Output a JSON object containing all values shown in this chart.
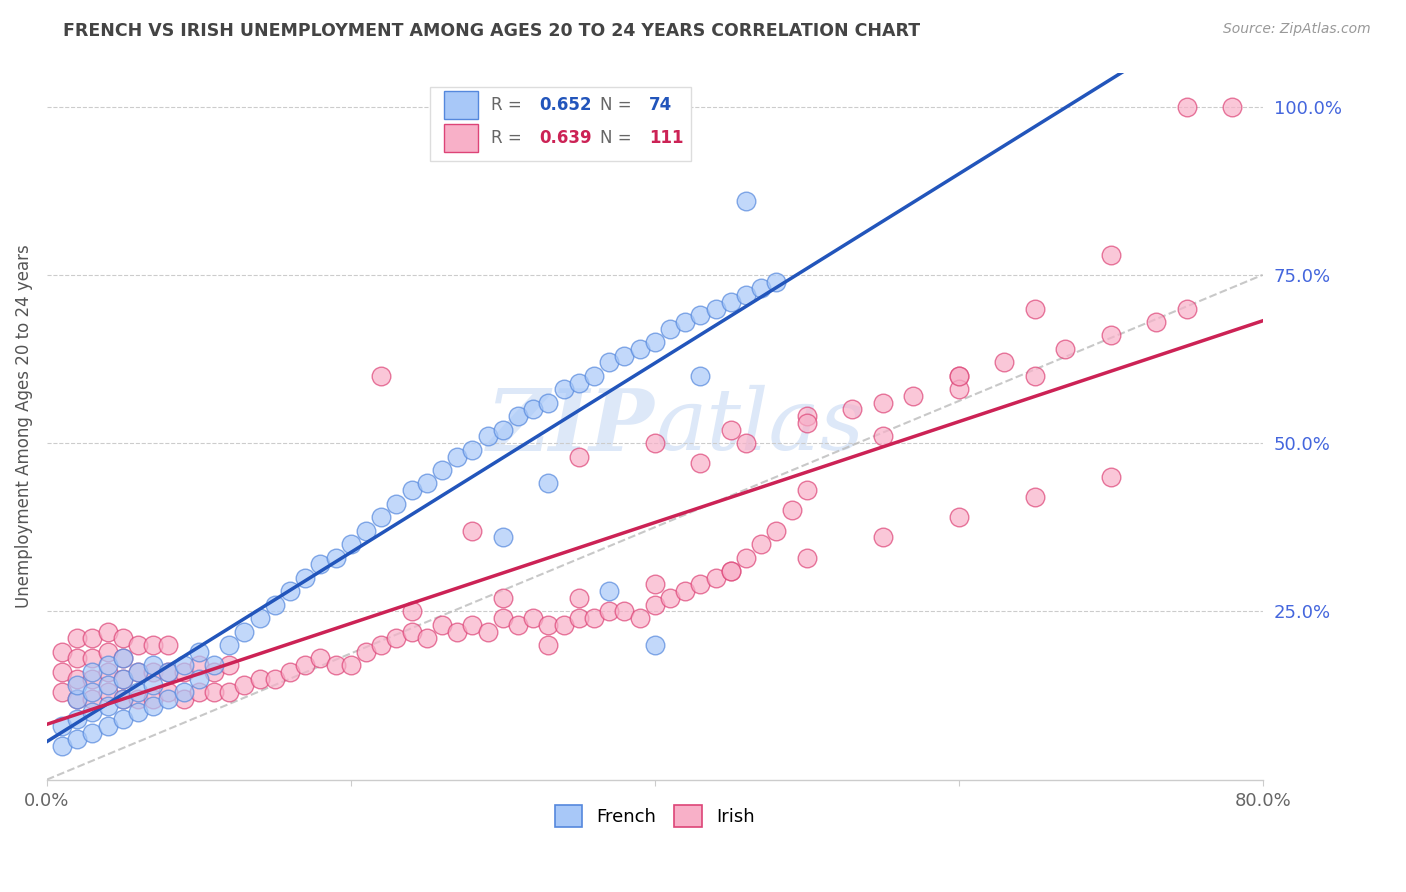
{
  "title": "FRENCH VS IRISH UNEMPLOYMENT AMONG AGES 20 TO 24 YEARS CORRELATION CHART",
  "source": "Source: ZipAtlas.com",
  "ylabel": "Unemployment Among Ages 20 to 24 years",
  "xlim": [
    0.0,
    0.8
  ],
  "ylim": [
    0.0,
    1.05
  ],
  "yticks_right_labels": [
    "25.0%",
    "50.0%",
    "75.0%",
    "100.0%"
  ],
  "ytick_right_color": "#4466dd",
  "french_color": "#a8c8f8",
  "irish_color": "#f8b0c8",
  "french_edge_color": "#5588dd",
  "irish_edge_color": "#dd4477",
  "trendline_french_color": "#2255bb",
  "trendline_irish_color": "#cc2255",
  "ref_line_color": "#bbbbbb",
  "grid_color": "#cccccc",
  "title_color": "#444444",
  "watermark_color": "#dde8f8",
  "french_r": "0.652",
  "french_n": "74",
  "irish_r": "0.639",
  "irish_n": "111",
  "french_x": [
    0.01,
    0.01,
    0.02,
    0.02,
    0.02,
    0.02,
    0.03,
    0.03,
    0.03,
    0.03,
    0.04,
    0.04,
    0.04,
    0.04,
    0.05,
    0.05,
    0.05,
    0.05,
    0.06,
    0.06,
    0.06,
    0.07,
    0.07,
    0.07,
    0.08,
    0.08,
    0.09,
    0.09,
    0.1,
    0.1,
    0.11,
    0.12,
    0.13,
    0.14,
    0.15,
    0.16,
    0.17,
    0.18,
    0.19,
    0.2,
    0.21,
    0.22,
    0.23,
    0.24,
    0.25,
    0.26,
    0.27,
    0.28,
    0.29,
    0.3,
    0.31,
    0.32,
    0.33,
    0.34,
    0.35,
    0.36,
    0.37,
    0.38,
    0.39,
    0.4,
    0.41,
    0.42,
    0.43,
    0.44,
    0.45,
    0.46,
    0.47,
    0.48,
    0.3,
    0.33,
    0.37,
    0.4,
    0.43,
    0.46
  ],
  "french_y": [
    0.05,
    0.08,
    0.06,
    0.09,
    0.12,
    0.14,
    0.07,
    0.1,
    0.13,
    0.16,
    0.08,
    0.11,
    0.14,
    0.17,
    0.09,
    0.12,
    0.15,
    0.18,
    0.1,
    0.13,
    0.16,
    0.11,
    0.14,
    0.17,
    0.12,
    0.16,
    0.13,
    0.17,
    0.15,
    0.19,
    0.17,
    0.2,
    0.22,
    0.24,
    0.26,
    0.28,
    0.3,
    0.32,
    0.33,
    0.35,
    0.37,
    0.39,
    0.41,
    0.43,
    0.44,
    0.46,
    0.48,
    0.49,
    0.51,
    0.52,
    0.54,
    0.55,
    0.56,
    0.58,
    0.59,
    0.6,
    0.62,
    0.63,
    0.64,
    0.65,
    0.67,
    0.68,
    0.69,
    0.7,
    0.71,
    0.72,
    0.73,
    0.74,
    0.36,
    0.44,
    0.28,
    0.2,
    0.6,
    0.86
  ],
  "irish_x": [
    0.01,
    0.01,
    0.01,
    0.02,
    0.02,
    0.02,
    0.02,
    0.03,
    0.03,
    0.03,
    0.03,
    0.04,
    0.04,
    0.04,
    0.04,
    0.05,
    0.05,
    0.05,
    0.05,
    0.06,
    0.06,
    0.06,
    0.07,
    0.07,
    0.07,
    0.08,
    0.08,
    0.08,
    0.09,
    0.09,
    0.1,
    0.1,
    0.11,
    0.11,
    0.12,
    0.12,
    0.13,
    0.14,
    0.15,
    0.16,
    0.17,
    0.18,
    0.19,
    0.2,
    0.21,
    0.22,
    0.23,
    0.24,
    0.25,
    0.26,
    0.27,
    0.28,
    0.29,
    0.3,
    0.31,
    0.32,
    0.33,
    0.34,
    0.35,
    0.36,
    0.37,
    0.38,
    0.39,
    0.4,
    0.41,
    0.42,
    0.43,
    0.44,
    0.45,
    0.46,
    0.47,
    0.48,
    0.49,
    0.5,
    0.55,
    0.6,
    0.65,
    0.7,
    0.75,
    0.78,
    0.24,
    0.3,
    0.35,
    0.4,
    0.45,
    0.5,
    0.55,
    0.6,
    0.65,
    0.7,
    0.35,
    0.4,
    0.45,
    0.5,
    0.55,
    0.6,
    0.65,
    0.43,
    0.46,
    0.5,
    0.53,
    0.57,
    0.6,
    0.63,
    0.67,
    0.7,
    0.73,
    0.75,
    0.22,
    0.28,
    0.33
  ],
  "irish_y": [
    0.13,
    0.16,
    0.19,
    0.12,
    0.15,
    0.18,
    0.21,
    0.12,
    0.15,
    0.18,
    0.21,
    0.13,
    0.16,
    0.19,
    0.22,
    0.12,
    0.15,
    0.18,
    0.21,
    0.12,
    0.16,
    0.2,
    0.12,
    0.16,
    0.2,
    0.13,
    0.16,
    0.2,
    0.12,
    0.16,
    0.13,
    0.17,
    0.13,
    0.16,
    0.13,
    0.17,
    0.14,
    0.15,
    0.15,
    0.16,
    0.17,
    0.18,
    0.17,
    0.17,
    0.19,
    0.2,
    0.21,
    0.22,
    0.21,
    0.23,
    0.22,
    0.23,
    0.22,
    0.24,
    0.23,
    0.24,
    0.23,
    0.23,
    0.24,
    0.24,
    0.25,
    0.25,
    0.24,
    0.26,
    0.27,
    0.28,
    0.29,
    0.3,
    0.31,
    0.33,
    0.35,
    0.37,
    0.4,
    0.43,
    0.51,
    0.6,
    0.7,
    0.78,
    1.0,
    1.0,
    0.25,
    0.27,
    0.27,
    0.29,
    0.31,
    0.33,
    0.36,
    0.39,
    0.42,
    0.45,
    0.48,
    0.5,
    0.52,
    0.54,
    0.56,
    0.58,
    0.6,
    0.47,
    0.5,
    0.53,
    0.55,
    0.57,
    0.6,
    0.62,
    0.64,
    0.66,
    0.68,
    0.7,
    0.6,
    0.37,
    0.2
  ]
}
